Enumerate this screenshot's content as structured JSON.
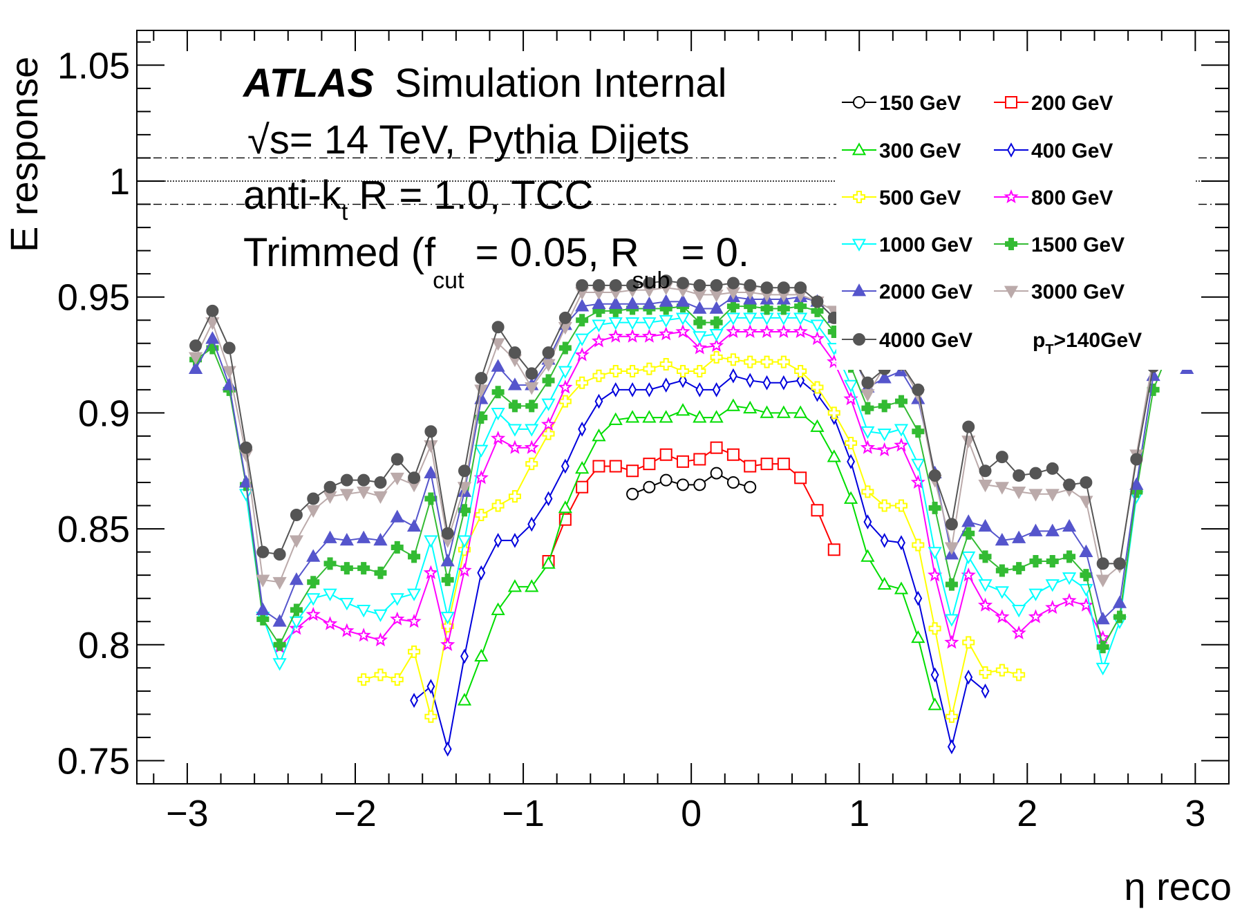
{
  "chart_data": {
    "type": "line",
    "xlabel": "η reco",
    "ylabel": "E response",
    "xlim": [
      -3.3,
      3.2
    ],
    "ylim": [
      0.74,
      1.065
    ],
    "x_ticks": [
      -3,
      -2,
      -1,
      0,
      1,
      2,
      3
    ],
    "x_tick_labels": [
      "−3",
      "−2",
      "−1",
      "0",
      "1",
      "2",
      "3"
    ],
    "y_ticks": [
      0.75,
      0.8,
      0.85,
      0.9,
      0.95,
      1,
      1.05
    ],
    "y_tick_labels": [
      "0.75",
      "0.8",
      "0.85",
      "0.9",
      "0.95",
      "1",
      "1.05"
    ],
    "reference_lines": [
      {
        "y": 1.0,
        "style": "dotted"
      },
      {
        "y": 1.01,
        "style": "dashdot"
      },
      {
        "y": 0.99,
        "style": "dashdot"
      }
    ],
    "annotations": {
      "atlas": "ATLAS",
      "atlas_suffix": "Simulation Internal",
      "sqrt_symbol": "√",
      "energy_line": "s= 14 TeV, Pythia Dijets",
      "algo_main": "anti-k",
      "algo_sub": "t",
      "algo_rest": " R = 1.0, TCC",
      "trim_a": "Trimmed (f",
      "trim_sub_a": "cut",
      "trim_b": " = 0.05, R",
      "trim_sub_b": "sub",
      "trim_c": " = 0."
    },
    "legend_extra": {
      "main": "p",
      "sub": "T",
      "rest": ">140GeV"
    },
    "x": [
      -2.95,
      -2.85,
      -2.75,
      -2.65,
      -2.55,
      -2.45,
      -2.35,
      -2.25,
      -2.15,
      -2.05,
      -1.95,
      -1.85,
      -1.75,
      -1.65,
      -1.55,
      -1.45,
      -1.35,
      -1.25,
      -1.15,
      -1.05,
      -0.95,
      -0.85,
      -0.75,
      -0.65,
      -0.55,
      -0.45,
      -0.35,
      -0.25,
      -0.15,
      -0.05,
      0.05,
      0.15,
      0.25,
      0.35,
      0.45,
      0.55,
      0.65,
      0.75,
      0.85,
      0.95,
      1.05,
      1.15,
      1.25,
      1.35,
      1.45,
      1.55,
      1.65,
      1.75,
      1.85,
      1.95,
      2.05,
      2.15,
      2.25,
      2.35,
      2.45,
      2.55,
      2.65,
      2.75,
      2.85,
      2.95
    ],
    "series": [
      {
        "name": "150 GeV",
        "color": "#000000",
        "marker": "circle-open",
        "values": [
          null,
          null,
          null,
          null,
          null,
          null,
          null,
          null,
          null,
          null,
          null,
          null,
          null,
          null,
          null,
          null,
          null,
          null,
          null,
          null,
          null,
          null,
          null,
          null,
          null,
          null,
          0.865,
          0.868,
          0.871,
          0.869,
          0.869,
          0.874,
          0.87,
          0.868,
          null,
          null,
          null,
          null,
          null,
          null,
          null,
          null,
          null,
          null,
          null,
          null,
          null,
          null,
          null,
          null,
          null,
          null,
          null,
          null,
          null,
          null,
          null,
          null,
          null,
          null
        ]
      },
      {
        "name": "200 GeV",
        "color": "#ff0000",
        "marker": "square-open",
        "values": [
          null,
          null,
          null,
          null,
          null,
          null,
          null,
          null,
          null,
          null,
          null,
          null,
          null,
          null,
          null,
          null,
          null,
          null,
          null,
          null,
          null,
          0.836,
          0.854,
          0.868,
          0.877,
          0.877,
          0.875,
          0.878,
          0.882,
          0.879,
          0.88,
          0.885,
          0.882,
          0.877,
          0.878,
          0.878,
          0.872,
          0.858,
          0.841,
          null,
          null,
          null,
          null,
          null,
          null,
          null,
          null,
          null,
          null,
          null,
          null,
          null,
          null,
          null,
          null,
          null,
          null,
          null,
          null,
          null
        ]
      },
      {
        "name": "300 GeV",
        "color": "#00dd00",
        "marker": "triangle-up-open",
        "values": [
          null,
          null,
          null,
          null,
          null,
          null,
          null,
          null,
          null,
          null,
          null,
          null,
          null,
          null,
          null,
          null,
          0.776,
          0.795,
          0.815,
          0.825,
          0.825,
          0.835,
          0.859,
          0.876,
          0.89,
          0.897,
          0.898,
          0.898,
          0.898,
          0.901,
          0.898,
          0.898,
          0.903,
          0.902,
          0.9,
          0.9,
          0.9,
          0.894,
          0.881,
          0.863,
          0.838,
          0.826,
          0.824,
          0.803,
          0.774,
          null,
          null,
          null,
          null,
          null,
          null,
          null,
          null,
          null,
          null,
          null,
          null,
          null,
          null,
          null
        ]
      },
      {
        "name": "400 GeV",
        "color": "#0000dd",
        "marker": "diamond-open",
        "values": [
          null,
          null,
          null,
          null,
          null,
          null,
          null,
          null,
          null,
          null,
          null,
          null,
          null,
          0.776,
          0.782,
          0.755,
          0.795,
          0.831,
          0.845,
          0.845,
          0.852,
          0.863,
          0.877,
          0.893,
          0.905,
          0.91,
          0.91,
          0.91,
          0.912,
          0.914,
          0.91,
          0.91,
          0.916,
          0.914,
          0.913,
          0.913,
          0.914,
          0.908,
          0.898,
          0.879,
          0.853,
          0.845,
          0.844,
          0.82,
          0.787,
          0.756,
          0.786,
          0.78,
          null,
          null,
          null,
          null,
          null,
          null,
          null,
          null,
          null,
          null,
          null,
          null
        ]
      },
      {
        "name": "500 GeV",
        "color": "#ffff00",
        "marker": "cross-open",
        "values": [
          null,
          null,
          null,
          null,
          null,
          null,
          null,
          null,
          null,
          null,
          0.785,
          0.787,
          0.785,
          0.797,
          0.769,
          0.808,
          0.841,
          0.856,
          0.86,
          0.864,
          0.878,
          0.891,
          0.905,
          0.913,
          0.916,
          0.918,
          0.918,
          0.919,
          0.921,
          0.918,
          0.918,
          0.924,
          0.923,
          0.922,
          0.922,
          0.922,
          0.918,
          0.911,
          0.9,
          0.887,
          0.866,
          0.86,
          0.86,
          0.843,
          0.807,
          0.769,
          0.801,
          0.788,
          0.789,
          0.787,
          null,
          null,
          null,
          null,
          null,
          null,
          null,
          null,
          null,
          null
        ]
      },
      {
        "name": "800 GeV",
        "color": "#ff00ff",
        "marker": "star-open",
        "values": [
          null,
          null,
          null,
          null,
          null,
          0.799,
          0.807,
          0.813,
          0.809,
          0.806,
          0.804,
          0.802,
          0.811,
          0.81,
          0.831,
          0.8,
          0.832,
          0.872,
          0.889,
          0.885,
          0.885,
          0.895,
          0.911,
          0.925,
          0.931,
          0.933,
          0.933,
          0.933,
          0.934,
          0.935,
          0.928,
          0.929,
          0.935,
          0.935,
          0.935,
          0.935,
          0.935,
          0.932,
          0.922,
          0.906,
          0.885,
          0.884,
          0.886,
          0.87,
          0.83,
          0.801,
          0.83,
          0.817,
          0.812,
          0.805,
          0.812,
          0.816,
          0.819,
          0.817,
          0.803,
          null,
          null,
          null,
          null,
          null
        ]
      },
      {
        "name": "1000 GeV",
        "color": "#00ffff",
        "marker": "triangle-down-open",
        "values": [
          null,
          null,
          null,
          0.865,
          0.812,
          0.792,
          0.81,
          0.82,
          0.822,
          0.818,
          0.815,
          0.813,
          0.82,
          0.822,
          0.845,
          0.812,
          0.845,
          0.884,
          0.9,
          0.893,
          0.893,
          0.904,
          0.918,
          0.932,
          0.938,
          0.939,
          0.939,
          0.939,
          0.94,
          0.941,
          0.933,
          0.934,
          0.941,
          0.941,
          0.941,
          0.941,
          0.941,
          0.938,
          0.928,
          0.912,
          0.892,
          0.891,
          0.893,
          0.878,
          0.84,
          0.811,
          0.838,
          0.826,
          0.823,
          0.815,
          0.822,
          0.826,
          0.829,
          0.824,
          0.79,
          0.81,
          0.864,
          null,
          null,
          null
        ]
      },
      {
        "name": "1500 GeV",
        "color": "#33bb33",
        "marker": "cross-filled",
        "values": [
          0.923,
          0.928,
          0.91,
          0.869,
          0.811,
          0.8,
          0.815,
          0.827,
          0.835,
          0.833,
          0.833,
          0.831,
          0.842,
          0.838,
          0.863,
          0.828,
          0.858,
          0.898,
          0.909,
          0.903,
          0.903,
          0.914,
          0.928,
          0.94,
          0.944,
          0.944,
          0.945,
          0.945,
          0.945,
          0.946,
          0.939,
          0.939,
          0.946,
          0.946,
          0.945,
          0.945,
          0.946,
          0.944,
          0.935,
          0.92,
          0.902,
          0.903,
          0.905,
          0.892,
          0.859,
          0.826,
          0.848,
          0.838,
          0.832,
          0.833,
          0.836,
          0.836,
          0.838,
          0.83,
          0.799,
          0.812,
          0.866,
          0.91,
          0.928,
          0.923
        ]
      },
      {
        "name": "2000 GeV",
        "color": "#5555cc",
        "marker": "triangle-up-filled",
        "values": [
          0.919,
          0.932,
          0.912,
          0.87,
          0.815,
          0.81,
          0.828,
          0.838,
          0.846,
          0.845,
          0.846,
          0.845,
          0.855,
          0.851,
          0.874,
          0.836,
          0.866,
          0.906,
          0.92,
          0.912,
          0.912,
          0.923,
          0.938,
          0.946,
          0.947,
          0.947,
          0.947,
          0.947,
          0.948,
          0.948,
          0.945,
          0.945,
          0.95,
          0.949,
          0.949,
          0.949,
          0.95,
          0.948,
          0.941,
          0.927,
          0.911,
          0.915,
          0.918,
          0.906,
          0.874,
          0.839,
          0.853,
          0.851,
          0.845,
          0.846,
          0.849,
          0.849,
          0.851,
          0.84,
          0.811,
          0.818,
          0.869,
          0.916,
          0.932,
          0.919
        ]
      },
      {
        "name": "3000 GeV",
        "color": "#bbaaaa",
        "marker": "triangle-down-filled",
        "values": [
          0.924,
          0.939,
          0.918,
          0.882,
          0.828,
          0.827,
          0.845,
          0.858,
          0.864,
          0.865,
          0.866,
          0.864,
          0.872,
          0.869,
          0.886,
          0.845,
          0.868,
          0.91,
          0.93,
          0.923,
          0.911,
          0.921,
          0.937,
          0.952,
          0.952,
          0.952,
          0.953,
          0.953,
          0.954,
          0.953,
          0.951,
          0.951,
          0.952,
          0.952,
          0.951,
          0.951,
          0.951,
          0.948,
          0.944,
          0.934,
          0.908,
          0.92,
          0.921,
          0.908,
          0.871,
          0.842,
          0.888,
          0.869,
          0.868,
          0.866,
          0.865,
          0.865,
          0.867,
          0.862,
          0.828,
          0.834,
          0.882,
          0.924,
          0.94,
          0.924
        ]
      },
      {
        "name": "4000 GeV",
        "color": "#555555",
        "marker": "circle-filled",
        "values": [
          0.929,
          0.944,
          0.928,
          0.885,
          0.84,
          0.839,
          0.856,
          0.863,
          0.868,
          0.871,
          0.871,
          0.87,
          0.88,
          0.872,
          0.892,
          0.848,
          0.875,
          0.915,
          0.937,
          0.926,
          0.917,
          0.926,
          0.941,
          0.955,
          0.955,
          0.955,
          0.955,
          0.956,
          0.957,
          0.956,
          0.955,
          0.955,
          0.956,
          0.955,
          0.954,
          0.954,
          0.954,
          0.948,
          0.941,
          0.925,
          0.913,
          0.919,
          0.921,
          0.91,
          0.873,
          0.852,
          0.894,
          0.875,
          0.881,
          0.873,
          0.874,
          0.876,
          0.869,
          0.87,
          0.835,
          0.835,
          0.88,
          0.92,
          0.945,
          0.93
        ]
      }
    ],
    "legend": {
      "placement": "top-right",
      "columns": 2
    }
  }
}
